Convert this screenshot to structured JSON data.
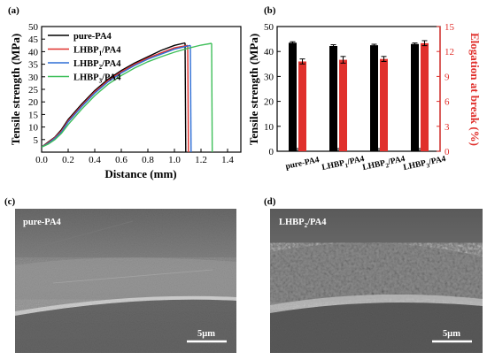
{
  "panels": {
    "a": "(a)",
    "b": "(b)",
    "c": "(c)",
    "d": "(d)"
  },
  "chart_data": [
    {
      "type": "line",
      "panel": "(a)",
      "xlabel": "Distance (mm)",
      "ylabel": "Tensile strength (MPa)",
      "xlim": [
        0.0,
        1.5
      ],
      "ylim": [
        0,
        50
      ],
      "xticks": [
        "0.0",
        "0.2",
        "0.4",
        "0.6",
        "0.8",
        "1.0",
        "1.2",
        "1.4"
      ],
      "yticks": [
        "5",
        "10",
        "15",
        "20",
        "25",
        "30",
        "35",
        "40",
        "45",
        "50"
      ],
      "legend_position": "top-left",
      "series": [
        {
          "name": "pure-PA4",
          "sub": "",
          "suffix": "",
          "color": "#000000",
          "x": [
            0.0,
            0.05,
            0.1,
            0.15,
            0.2,
            0.3,
            0.4,
            0.5,
            0.6,
            0.7,
            0.8,
            0.9,
            1.0,
            1.08
          ],
          "y": [
            2,
            4,
            6,
            9,
            13,
            19,
            24.5,
            29,
            32.5,
            35.5,
            38,
            40.5,
            42.5,
            43.5
          ],
          "break_x": 1.085,
          "break_y_end": 0
        },
        {
          "name": "LHBP",
          "sub": "1",
          "suffix": "/PA4",
          "color": "#e0302c",
          "x": [
            0.0,
            0.05,
            0.1,
            0.15,
            0.2,
            0.3,
            0.4,
            0.5,
            0.6,
            0.7,
            0.8,
            0.9,
            1.0,
            1.1
          ],
          "y": [
            2,
            3.8,
            5.8,
            8.5,
            12.5,
            18.5,
            24,
            28.5,
            32,
            35,
            37.5,
            39.5,
            41.5,
            42.5
          ],
          "break_x": 1.105,
          "break_y_end": 0
        },
        {
          "name": "LHBP",
          "sub": "2",
          "suffix": "/PA4",
          "color": "#2f6fd6",
          "x": [
            0.0,
            0.05,
            0.1,
            0.15,
            0.2,
            0.3,
            0.4,
            0.5,
            0.6,
            0.7,
            0.8,
            0.9,
            1.0,
            1.12
          ],
          "y": [
            2,
            3.5,
            5.5,
            8,
            12,
            18,
            23.5,
            28,
            31.5,
            34.5,
            37,
            39,
            41,
            42.5
          ],
          "break_x": 1.125,
          "break_y_end": 0
        },
        {
          "name": "LHBP",
          "sub": "3",
          "suffix": "/PA4",
          "color": "#3fbf5a",
          "x": [
            0.0,
            0.05,
            0.1,
            0.15,
            0.2,
            0.3,
            0.4,
            0.5,
            0.6,
            0.7,
            0.8,
            0.9,
            1.0,
            1.1,
            1.2,
            1.28
          ],
          "y": [
            2,
            3.2,
            5,
            7.5,
            11,
            17,
            22.5,
            27,
            30.5,
            33.5,
            36,
            38,
            39.8,
            41.3,
            42.6,
            43.3
          ],
          "break_x": 1.285,
          "break_y_end": 0
        }
      ]
    },
    {
      "type": "bar",
      "panel": "(b)",
      "categories": [
        {
          "name": "pure-PA4",
          "sub": "",
          "suffix": ""
        },
        {
          "name": "LHBP",
          "sub": "1",
          "suffix": "/PA4"
        },
        {
          "name": "LHBP",
          "sub": "2",
          "suffix": "/PA4"
        },
        {
          "name": "LHBP",
          "sub": "3",
          "suffix": "/PA4"
        }
      ],
      "ylabel_left": "Tensile strength (MPa)",
      "ylabel_right": "Elogation at break (%)",
      "ylim_left": [
        0,
        50
      ],
      "ylim_right": [
        0,
        15
      ],
      "yticks_left": [
        "0",
        "10",
        "20",
        "30",
        "40",
        "50"
      ],
      "yticks_right": [
        "0",
        "3",
        "6",
        "9",
        "12",
        "15"
      ],
      "series": [
        {
          "axis": "left",
          "color": "#000000",
          "values": [
            43.5,
            42.2,
            42.5,
            43.0
          ],
          "errors": [
            0.4,
            0.5,
            0.4,
            0.4
          ]
        },
        {
          "axis": "right",
          "color": "#e0302c",
          "values": [
            10.8,
            11.0,
            11.1,
            13.0
          ],
          "errors": [
            0.3,
            0.4,
            0.3,
            0.3
          ]
        }
      ]
    }
  ],
  "sem": {
    "c": {
      "label": "pure-PA4",
      "label_sub": "",
      "label_suffix": "",
      "scale": "5μm"
    },
    "d": {
      "label": "LHBP",
      "label_sub": "2",
      "label_suffix": "/PA4",
      "scale": "5μm"
    }
  }
}
